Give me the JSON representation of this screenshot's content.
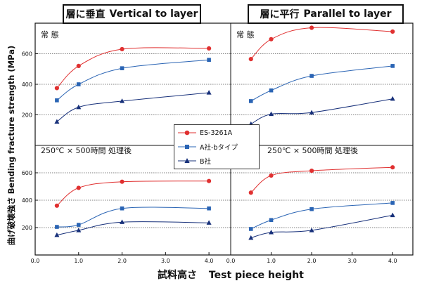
{
  "header": {
    "left_title_jp": "層に垂直",
    "left_title_en": "Vertical to layer",
    "right_title_jp": "層に平行",
    "right_title_en": "Parallel to layer"
  },
  "axes": {
    "ylabel_jp": "曲げ破壊強さ",
    "ylabel_en": "Bending fracture strength (MPa)",
    "xlabel_jp": "試料高さ",
    "xlabel_en": "Test piece height",
    "x_ticks": [
      "0.0",
      "1.0",
      "2.0",
      "3.0",
      "4.0"
    ],
    "y_ticks": [
      "200",
      "400",
      "600"
    ]
  },
  "legend": {
    "items": [
      {
        "label": "ES-3261A",
        "color": "#e03030",
        "marker": "circle"
      },
      {
        "label": "A社-bタイプ",
        "color": "#2a64b4",
        "marker": "square"
      },
      {
        "label": "B社",
        "color": "#17307a",
        "marker": "triangle"
      }
    ]
  },
  "panel_labels": {
    "normal": "常 態",
    "treated": "250℃ × 500時間 処理後"
  },
  "chart_data": [
    {
      "type": "line",
      "panel": "top-left",
      "title": "層に垂直 Vertical to layer",
      "label": "常 態",
      "xlim": [
        0,
        4.5
      ],
      "ylim": [
        0,
        800
      ],
      "x": [
        0.5,
        1.0,
        2.0,
        4.0
      ],
      "grid": true,
      "series": [
        {
          "name": "ES-3261A",
          "values": [
            375,
            520,
            630,
            635
          ]
        },
        {
          "name": "A社-bタイプ",
          "values": [
            295,
            400,
            505,
            560
          ]
        },
        {
          "name": "B社",
          "values": [
            155,
            250,
            290,
            345
          ]
        }
      ]
    },
    {
      "type": "line",
      "panel": "top-right",
      "title": "層に平行 Parallel to layer",
      "label": "常 態",
      "xlim": [
        0,
        4.5
      ],
      "ylim": [
        0,
        800
      ],
      "x": [
        0.5,
        1.0,
        2.0,
        4.0
      ],
      "grid": true,
      "series": [
        {
          "name": "ES-3261A",
          "values": [
            565,
            695,
            770,
            745
          ]
        },
        {
          "name": "A社-bタイプ",
          "values": [
            290,
            360,
            455,
            520
          ]
        },
        {
          "name": "B社",
          "values": [
            140,
            205,
            215,
            305
          ]
        }
      ]
    },
    {
      "type": "line",
      "panel": "bottom-left",
      "label": "250℃ × 500時間 処理後",
      "xlim": [
        0,
        4.5
      ],
      "ylim": [
        0,
        800
      ],
      "x": [
        0.5,
        1.0,
        2.0,
        4.0
      ],
      "grid": true,
      "series": [
        {
          "name": "ES-3261A",
          "values": [
            360,
            490,
            535,
            540
          ]
        },
        {
          "name": "A社-bタイプ",
          "values": [
            205,
            220,
            340,
            340
          ]
        },
        {
          "name": "B社",
          "values": [
            145,
            180,
            240,
            235
          ]
        }
      ]
    },
    {
      "type": "line",
      "panel": "bottom-right",
      "label": "250℃ × 500時間 処理後",
      "xlim": [
        0,
        4.5
      ],
      "ylim": [
        0,
        800
      ],
      "x": [
        0.5,
        1.0,
        2.0,
        4.0
      ],
      "grid": true,
      "series": [
        {
          "name": "ES-3261A",
          "values": [
            455,
            580,
            615,
            640
          ]
        },
        {
          "name": "A社-bタイプ",
          "values": [
            190,
            255,
            335,
            380
          ]
        },
        {
          "name": "B社",
          "values": [
            125,
            165,
            180,
            290
          ]
        }
      ]
    }
  ]
}
